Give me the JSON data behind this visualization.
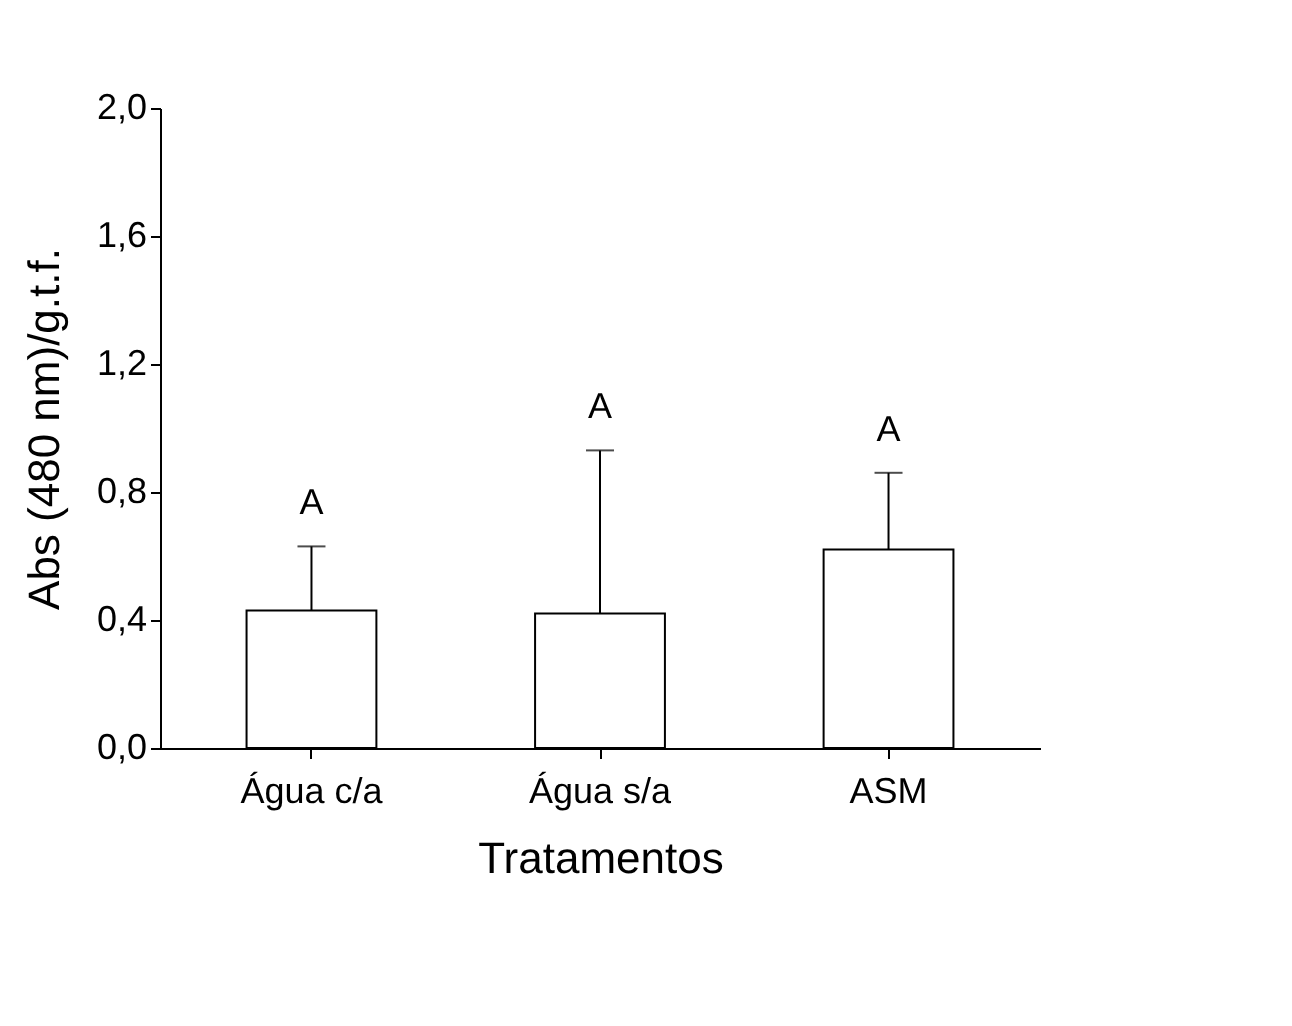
{
  "chart_data": {
    "type": "bar",
    "xlabel": "Tratamentos",
    "ylabel": "Abs (480 nm)/g.t.f.",
    "categories": [
      "Água c/a",
      "Água s/a",
      "ASM"
    ],
    "values": [
      0.43,
      0.42,
      0.62
    ],
    "errors": [
      [
        0.43,
        0.63
      ],
      [
        0.42,
        0.93
      ],
      [
        0.62,
        0.86
      ]
    ],
    "color": "#ffffff",
    "ylim": [
      0,
      2.0
    ],
    "yticks": [
      {
        "value": 0,
        "label": "0,0"
      },
      {
        "value": 0.4,
        "label": "0,4"
      },
      {
        "value": 0.8,
        "label": "0,8"
      },
      {
        "value": 1.2,
        "label": "1,2"
      },
      {
        "value": 1.6,
        "label": "1,6"
      },
      {
        "value": 2.0,
        "label": "2,0"
      }
    ],
    "annotations": [
      "A",
      "A",
      "A"
    ],
    "grid": false
  }
}
